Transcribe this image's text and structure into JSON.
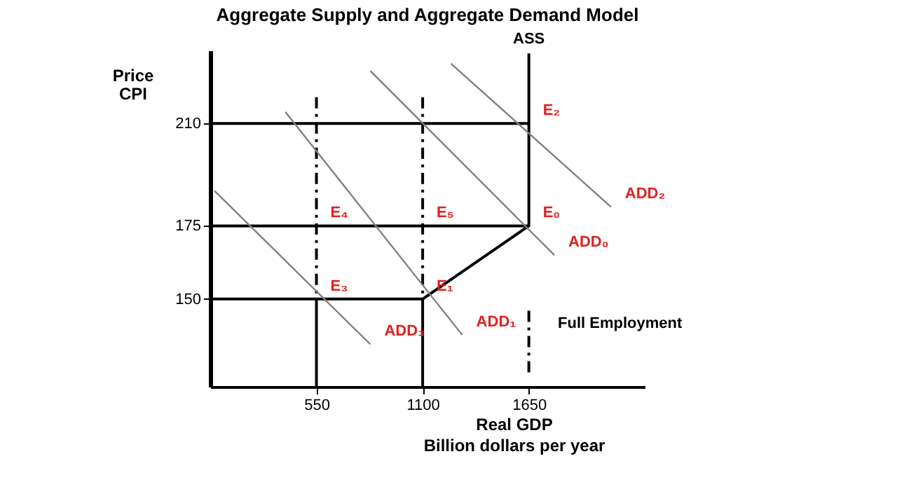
{
  "chart_data": {
    "type": "line",
    "title": "Aggregate Supply and Aggregate Demand Model",
    "xlabel": "Real GDP\nBillion dollars per year",
    "ylabel": "Price\nCPI",
    "xlim": [
      0,
      2250
    ],
    "ylim": [
      120,
      235
    ],
    "xticks": [
      550,
      1100,
      1650
    ],
    "yticks": [
      150,
      175,
      210
    ],
    "grid": false,
    "marker": "none",
    "series": [
      {
        "name": "ASS",
        "color": "#000000",
        "x": [
          0,
          1100,
          1650,
          1650
        ],
        "values": [
          150,
          150,
          175,
          234
        ],
        "line_style": "solid"
      },
      {
        "color": "#000000",
        "x": [
          0,
          1650
        ],
        "values": [
          175,
          175
        ],
        "line_style": "solid"
      },
      {
        "color": "#000000",
        "x": [
          0,
          1650
        ],
        "values": [
          210,
          210
        ],
        "line_style": "solid"
      },
      {
        "color": "#000000",
        "x": [
          550,
          550
        ],
        "values": [
          150,
          120
        ],
        "line_style": "solid"
      },
      {
        "color": "#000000",
        "x": [
          1100,
          1100
        ],
        "values": [
          150,
          120
        ],
        "line_style": "solid"
      },
      {
        "color": "#000000",
        "x": [
          550,
          550
        ],
        "values": [
          219,
          150
        ],
        "line_style": "dashed"
      },
      {
        "color": "#000000",
        "x": [
          1100,
          1100
        ],
        "values": [
          219,
          150
        ],
        "line_style": "dashed"
      },
      {
        "color": "#000000",
        "x": [
          1650,
          1650
        ],
        "values": [
          146,
          124
        ],
        "line_style": "dashed"
      },
      {
        "color": "#808080",
        "x": [
          1247,
          2075
        ],
        "values": [
          230.5,
          181.5
        ],
        "line_style": "solid"
      },
      {
        "color": "#808080",
        "x": [
          829,
          1782
        ],
        "values": [
          228,
          165
        ],
        "line_style": "solid"
      },
      {
        "color": "#808080",
        "x": [
          389,
          1305
        ],
        "values": [
          214,
          137.7
        ],
        "line_style": "solid"
      },
      {
        "color": "#808080",
        "x": [
          22,
          829
        ],
        "values": [
          187,
          134.5
        ],
        "line_style": "solid"
      }
    ],
    "annotations": [
      {
        "text": "E₂",
        "x": 1650,
        "y": 210
      },
      {
        "text": "E₄",
        "x": 550,
        "y": 175
      },
      {
        "text": "E₅",
        "x": 1100,
        "y": 175
      },
      {
        "text": "E₀",
        "x": 1650,
        "y": 175
      },
      {
        "text": "E₃",
        "x": 550,
        "y": 150
      },
      {
        "text": "E₁",
        "x": 1100,
        "y": 150
      },
      {
        "text": "ADD₂",
        "x": 2075,
        "y": 181.5
      },
      {
        "text": "ADD₀",
        "x": 1782,
        "y": 165
      },
      {
        "text": "ADD₁",
        "x": 1305,
        "y": 137.7
      },
      {
        "text": "ADD₃",
        "x": 829,
        "y": 134.5
      },
      "Full Employment"
    ]
  }
}
